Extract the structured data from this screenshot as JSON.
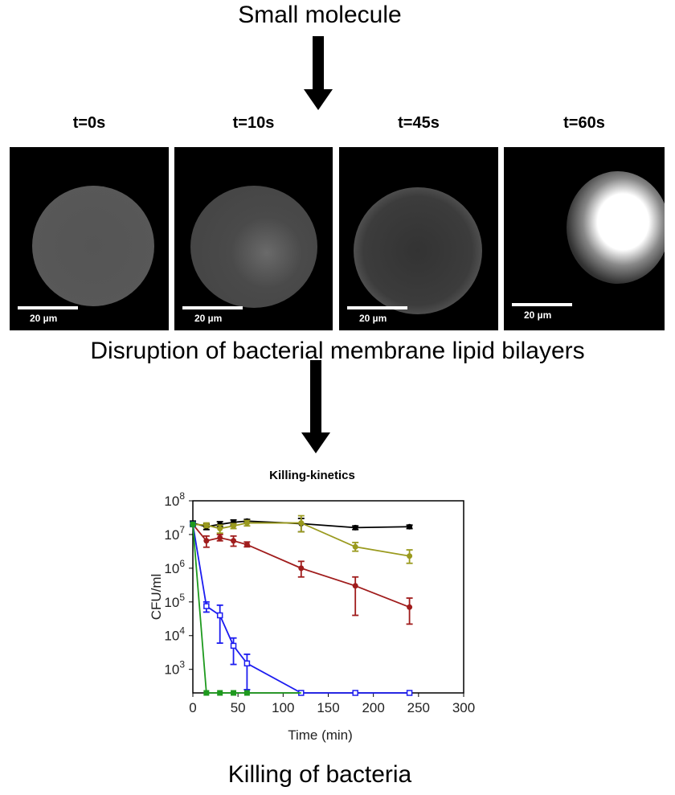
{
  "top_label": "Small molecule",
  "middle_label": "Disruption of bacterial membrane lipid bilayers",
  "bottom_label": "Killing of bacteria",
  "panels": [
    {
      "time": "t=0s",
      "scale": "20 µm"
    },
    {
      "time": "t=10s",
      "scale": "20 µm"
    },
    {
      "time": "t=45s",
      "scale": "20 µm"
    },
    {
      "time": "t=60s",
      "scale": "20 µm"
    }
  ],
  "chart_data": {
    "type": "line",
    "title": "Killing-kinetics",
    "xlabel": "Time (min)",
    "ylabel": "CFU/ml",
    "xlim": [
      0,
      300
    ],
    "ylim": [
      200,
      100000000
    ],
    "yscale": "log",
    "grid": false,
    "xticks": [
      "0",
      "50",
      "100",
      "150",
      "200",
      "250",
      "300"
    ],
    "yticks": [
      {
        "exp": "8",
        "value": 100000000
      },
      {
        "exp": "7",
        "value": 10000000
      },
      {
        "exp": "6",
        "value": 1000000
      },
      {
        "exp": "5",
        "value": 100000
      },
      {
        "exp": "4",
        "value": 10000
      },
      {
        "exp": "3",
        "value": 1000
      }
    ],
    "series": [
      {
        "color": "#000000",
        "marker": "filled",
        "x": [
          0,
          15,
          30,
          45,
          60,
          120,
          180,
          240
        ],
        "y": [
          22000000,
          17000000,
          20000000,
          23000000,
          25000000,
          21000000,
          16000000,
          17000000
        ],
        "err_low": [
          19000000,
          14000000,
          17000000,
          19000000,
          22000000,
          12000000,
          14000000,
          15000000
        ],
        "err_high": [
          25000000,
          20000000,
          24000000,
          27000000,
          28000000,
          30000000,
          18000000,
          19000000
        ]
      },
      {
        "color": "#9a9a1e",
        "marker": "filled",
        "x": [
          0,
          15,
          30,
          45,
          60,
          120,
          180,
          240
        ],
        "y": [
          20000000,
          19000000,
          15000000,
          18000000,
          22000000,
          22000000,
          4300000,
          2300000
        ],
        "err_low": [
          18000000,
          16000000,
          11000000,
          15000000,
          18000000,
          12000000,
          3200000,
          1400000
        ],
        "err_high": [
          23000000,
          22000000,
          19000000,
          21000000,
          26000000,
          36000000,
          5800000,
          3500000
        ]
      },
      {
        "color": "#a01c1c",
        "marker": "filled",
        "x": [
          0,
          15,
          30,
          45,
          60,
          120,
          180,
          240
        ],
        "y": [
          20000000,
          6500000,
          8000000,
          6500000,
          5000000,
          1000000,
          300000,
          70000
        ],
        "err_low": [
          18000000,
          4200000,
          6500000,
          4500000,
          4300000,
          550000,
          40000,
          22000
        ],
        "err_high": [
          23000000,
          9000000,
          10000000,
          9000000,
          6000000,
          1600000,
          550000,
          130000
        ]
      },
      {
        "color": "#1c1cf0",
        "marker": "open",
        "x": [
          0,
          15,
          30,
          45,
          60,
          120,
          180,
          240
        ],
        "y": [
          20000000,
          75000,
          40000,
          5000,
          1500,
          200,
          200,
          200
        ],
        "err_low": [
          18000000,
          50000,
          6000,
          1400,
          250,
          200,
          200,
          200
        ],
        "err_high": [
          23000000,
          100000,
          80000,
          8500,
          2800,
          200,
          200,
          200
        ]
      },
      {
        "color": "#1e9a1e",
        "marker": "filled-square",
        "x": [
          0,
          15,
          30,
          45,
          60,
          120
        ],
        "y": [
          20000000,
          200,
          200,
          200,
          200,
          200
        ],
        "show_marker": [
          true,
          true,
          true,
          true,
          true,
          false
        ]
      }
    ]
  }
}
